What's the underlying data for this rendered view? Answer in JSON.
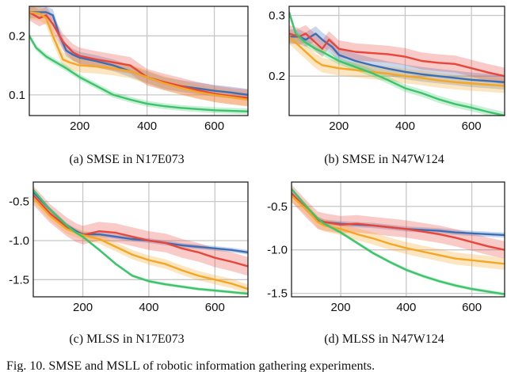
{
  "figure_caption": "Fig. 10.   SMSE and MSLL of robotic information gathering experiments.",
  "colors": {
    "blue": "#3a6fb8",
    "red": "#e8463a",
    "orange": "#f5a623",
    "green": "#3cc46a"
  },
  "chart_data": [
    {
      "type": "line",
      "id": "a",
      "caption": "(a)  SMSE  in  N17E073",
      "xlim": [
        50,
        700
      ],
      "ylim": [
        0.065,
        0.25
      ],
      "xticks": [
        200,
        400,
        600
      ],
      "xtick_labels": [
        "200",
        "400",
        "600"
      ],
      "yticks": [
        0.1,
        0.2
      ],
      "ytick_labels": [
        "0.1",
        "0.2"
      ],
      "series": [
        {
          "name": "blue",
          "color": "#3a6fb8",
          "band": 0.01,
          "x": [
            50,
            80,
            100,
            120,
            140,
            160,
            180,
            200,
            250,
            300,
            350,
            400,
            450,
            500,
            550,
            600,
            650,
            700
          ],
          "y": [
            0.24,
            0.24,
            0.24,
            0.235,
            0.2,
            0.175,
            0.168,
            0.163,
            0.157,
            0.15,
            0.14,
            0.13,
            0.12,
            0.115,
            0.111,
            0.107,
            0.104,
            0.1
          ]
        },
        {
          "name": "red",
          "color": "#e8463a",
          "band": 0.014,
          "x": [
            50,
            80,
            100,
            120,
            150,
            180,
            200,
            250,
            300,
            350,
            400,
            450,
            500,
            550,
            600,
            650,
            700
          ],
          "y": [
            0.24,
            0.23,
            0.235,
            0.22,
            0.19,
            0.172,
            0.166,
            0.16,
            0.155,
            0.15,
            0.13,
            0.122,
            0.115,
            0.108,
            0.102,
            0.098,
            0.095
          ]
        },
        {
          "name": "orange",
          "color": "#f5a623",
          "band": 0.012,
          "x": [
            50,
            80,
            100,
            120,
            150,
            170,
            200,
            250,
            300,
            350,
            400,
            450,
            500,
            550,
            600,
            650,
            700
          ],
          "y": [
            0.24,
            0.238,
            0.23,
            0.2,
            0.16,
            0.155,
            0.15,
            0.148,
            0.145,
            0.14,
            0.13,
            0.12,
            0.112,
            0.105,
            0.1,
            0.096,
            0.092
          ]
        },
        {
          "name": "green",
          "color": "#3cc46a",
          "band": 0.005,
          "x": [
            50,
            70,
            100,
            130,
            160,
            200,
            250,
            300,
            350,
            400,
            450,
            500,
            550,
            600,
            650,
            700
          ],
          "y": [
            0.2,
            0.18,
            0.165,
            0.155,
            0.145,
            0.13,
            0.115,
            0.1,
            0.092,
            0.085,
            0.081,
            0.078,
            0.076,
            0.074,
            0.073,
            0.072
          ]
        }
      ]
    },
    {
      "type": "line",
      "id": "b",
      "caption": "(b)  SMSE  in  N47W124",
      "xlim": [
        50,
        700
      ],
      "ylim": [
        0.135,
        0.315
      ],
      "xticks": [
        200,
        400,
        600
      ],
      "xtick_labels": [
        "200",
        "400",
        "600"
      ],
      "yticks": [
        0.2,
        0.3
      ],
      "ytick_labels": [
        "0.2",
        "0.3"
      ],
      "series": [
        {
          "name": "blue",
          "color": "#3a6fb8",
          "band": 0.012,
          "x": [
            50,
            80,
            100,
            130,
            150,
            180,
            200,
            250,
            300,
            350,
            400,
            450,
            500,
            550,
            600,
            650,
            700
          ],
          "y": [
            0.265,
            0.265,
            0.26,
            0.27,
            0.26,
            0.248,
            0.235,
            0.225,
            0.218,
            0.212,
            0.207,
            0.203,
            0.2,
            0.197,
            0.194,
            0.192,
            0.19
          ]
        },
        {
          "name": "red",
          "color": "#e8463a",
          "band": 0.014,
          "x": [
            50,
            80,
            100,
            130,
            150,
            170,
            200,
            250,
            300,
            350,
            400,
            450,
            500,
            550,
            600,
            650,
            700
          ],
          "y": [
            0.27,
            0.265,
            0.27,
            0.255,
            0.245,
            0.26,
            0.245,
            0.24,
            0.238,
            0.236,
            0.232,
            0.225,
            0.222,
            0.22,
            0.213,
            0.206,
            0.2
          ]
        },
        {
          "name": "orange",
          "color": "#f5a623",
          "band": 0.012,
          "x": [
            50,
            80,
            100,
            130,
            150,
            180,
            200,
            250,
            300,
            350,
            400,
            450,
            500,
            550,
            600,
            650,
            700
          ],
          "y": [
            0.265,
            0.25,
            0.24,
            0.225,
            0.218,
            0.215,
            0.213,
            0.21,
            0.207,
            0.204,
            0.2,
            0.197,
            0.193,
            0.19,
            0.188,
            0.186,
            0.184
          ]
        },
        {
          "name": "green",
          "color": "#3cc46a",
          "band": 0.006,
          "x": [
            50,
            70,
            100,
            130,
            150,
            200,
            250,
            300,
            350,
            400,
            450,
            500,
            550,
            600,
            650,
            700
          ],
          "y": [
            0.305,
            0.27,
            0.255,
            0.245,
            0.24,
            0.225,
            0.215,
            0.205,
            0.193,
            0.18,
            0.172,
            0.162,
            0.154,
            0.148,
            0.141,
            0.135
          ]
        }
      ]
    },
    {
      "type": "line",
      "id": "c",
      "caption": "(c)  MLSS  in  N17E073",
      "xlim": [
        50,
        700
      ],
      "ylim": [
        -1.72,
        -0.25
      ],
      "xticks": [
        200,
        400,
        600
      ],
      "xtick_labels": [
        "200",
        "400",
        "600"
      ],
      "yticks": [
        -0.5,
        -1.0,
        -1.5
      ],
      "ytick_labels": [
        "-0.5",
        "-1.0",
        "-1.5"
      ],
      "series": [
        {
          "name": "blue",
          "color": "#3a6fb8",
          "band": 0.03,
          "x": [
            50,
            100,
            150,
            180,
            200,
            250,
            300,
            350,
            400,
            450,
            500,
            550,
            600,
            650,
            700
          ],
          "y": [
            -0.38,
            -0.6,
            -0.8,
            -0.88,
            -0.92,
            -0.92,
            -0.95,
            -0.98,
            -1.0,
            -1.03,
            -1.06,
            -1.08,
            -1.1,
            -1.12,
            -1.15
          ]
        },
        {
          "name": "red",
          "color": "#e8463a",
          "band": 0.12,
          "x": [
            50,
            100,
            150,
            180,
            200,
            250,
            300,
            350,
            400,
            450,
            500,
            550,
            600,
            650,
            700
          ],
          "y": [
            -0.42,
            -0.65,
            -0.82,
            -0.9,
            -0.93,
            -0.88,
            -0.9,
            -0.95,
            -1.0,
            -1.03,
            -1.1,
            -1.15,
            -1.22,
            -1.27,
            -1.33
          ]
        },
        {
          "name": "orange",
          "color": "#f5a623",
          "band": 0.06,
          "x": [
            50,
            100,
            150,
            180,
            200,
            250,
            300,
            350,
            400,
            450,
            500,
            550,
            600,
            650,
            700
          ],
          "y": [
            -0.45,
            -0.68,
            -0.85,
            -0.9,
            -0.93,
            -0.98,
            -1.08,
            -1.18,
            -1.25,
            -1.3,
            -1.38,
            -1.45,
            -1.5,
            -1.55,
            -1.62
          ]
        },
        {
          "name": "green",
          "color": "#3cc46a",
          "band": 0.02,
          "x": [
            50,
            100,
            150,
            180,
            200,
            250,
            300,
            350,
            400,
            450,
            500,
            550,
            600,
            650,
            700
          ],
          "y": [
            -0.35,
            -0.6,
            -0.8,
            -0.9,
            -0.95,
            -1.12,
            -1.3,
            -1.45,
            -1.52,
            -1.56,
            -1.59,
            -1.62,
            -1.64,
            -1.66,
            -1.68
          ]
        }
      ]
    },
    {
      "type": "line",
      "id": "d",
      "caption": "(d)  MLSS  in  N47W124",
      "xlim": [
        50,
        700
      ],
      "ylim": [
        -1.54,
        -0.22
      ],
      "xticks": [
        200,
        400,
        600
      ],
      "xtick_labels": [
        "200",
        "400",
        "600"
      ],
      "yticks": [
        -0.5,
        -1.0,
        -1.5
      ],
      "ytick_labels": [
        "-0.5",
        "-1.0",
        "-1.5"
      ],
      "series": [
        {
          "name": "blue",
          "color": "#3a6fb8",
          "band": 0.03,
          "x": [
            50,
            100,
            130,
            150,
            200,
            250,
            300,
            350,
            400,
            450,
            500,
            550,
            600,
            650,
            700
          ],
          "y": [
            -0.35,
            -0.55,
            -0.65,
            -0.68,
            -0.7,
            -0.71,
            -0.72,
            -0.74,
            -0.76,
            -0.77,
            -0.78,
            -0.8,
            -0.81,
            -0.82,
            -0.83
          ]
        },
        {
          "name": "red",
          "color": "#e8463a",
          "band": 0.1,
          "x": [
            50,
            100,
            130,
            150,
            200,
            250,
            300,
            350,
            400,
            450,
            500,
            550,
            600,
            650,
            700
          ],
          "y": [
            -0.35,
            -0.55,
            -0.66,
            -0.68,
            -0.71,
            -0.7,
            -0.72,
            -0.74,
            -0.76,
            -0.79,
            -0.82,
            -0.86,
            -0.91,
            -0.96,
            -1.0
          ]
        },
        {
          "name": "orange",
          "color": "#f5a623",
          "band": 0.07,
          "x": [
            50,
            100,
            130,
            150,
            200,
            250,
            300,
            350,
            400,
            450,
            500,
            550,
            600,
            650,
            700
          ],
          "y": [
            -0.38,
            -0.55,
            -0.68,
            -0.72,
            -0.76,
            -0.82,
            -0.87,
            -0.93,
            -0.98,
            -1.02,
            -1.06,
            -1.1,
            -1.12,
            -1.14,
            -1.16
          ]
        },
        {
          "name": "green",
          "color": "#3cc46a",
          "band": 0.02,
          "x": [
            50,
            100,
            130,
            150,
            200,
            250,
            300,
            350,
            400,
            450,
            500,
            550,
            600,
            650,
            700
          ],
          "y": [
            -0.3,
            -0.52,
            -0.64,
            -0.7,
            -0.8,
            -0.92,
            -1.04,
            -1.14,
            -1.23,
            -1.3,
            -1.36,
            -1.41,
            -1.45,
            -1.48,
            -1.51
          ]
        }
      ]
    }
  ]
}
